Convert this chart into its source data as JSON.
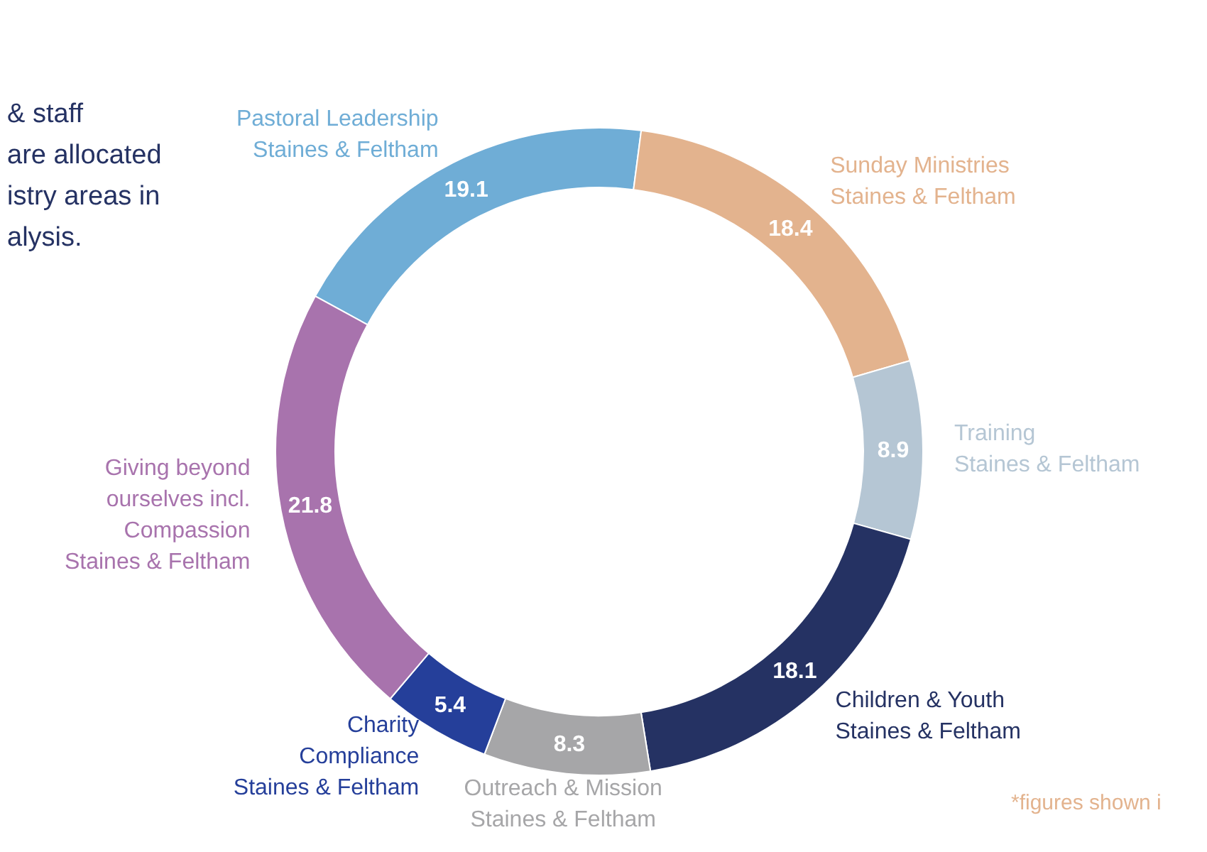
{
  "chart_data": {
    "type": "donut",
    "categories": [
      "Pastoral Leadership\nStaines & Feltham",
      "Sunday Ministries\nStaines & Feltham",
      "Training\nStaines & Feltham",
      "Children & Youth\nStaines & Feltham",
      "Outreach & Mission\nStaines & Feltham",
      "Charity\nCompliance\nStaines & Feltham",
      "Giving beyond\nourselves incl.\nCompassion\nStaines & Feltham"
    ],
    "values": [
      19.1,
      18.4,
      8.9,
      18.1,
      8.3,
      5.4,
      21.8
    ],
    "colors": [
      "#6fadd6",
      "#e3b38e",
      "#b5c6d4",
      "#253263",
      "#a6a6a8",
      "#253f9a",
      "#a873ad"
    ],
    "data_labels": true,
    "annotations": [
      "& staff\nare allocated\nistry areas in\nalysis.",
      "*figures shown i"
    ]
  }
}
